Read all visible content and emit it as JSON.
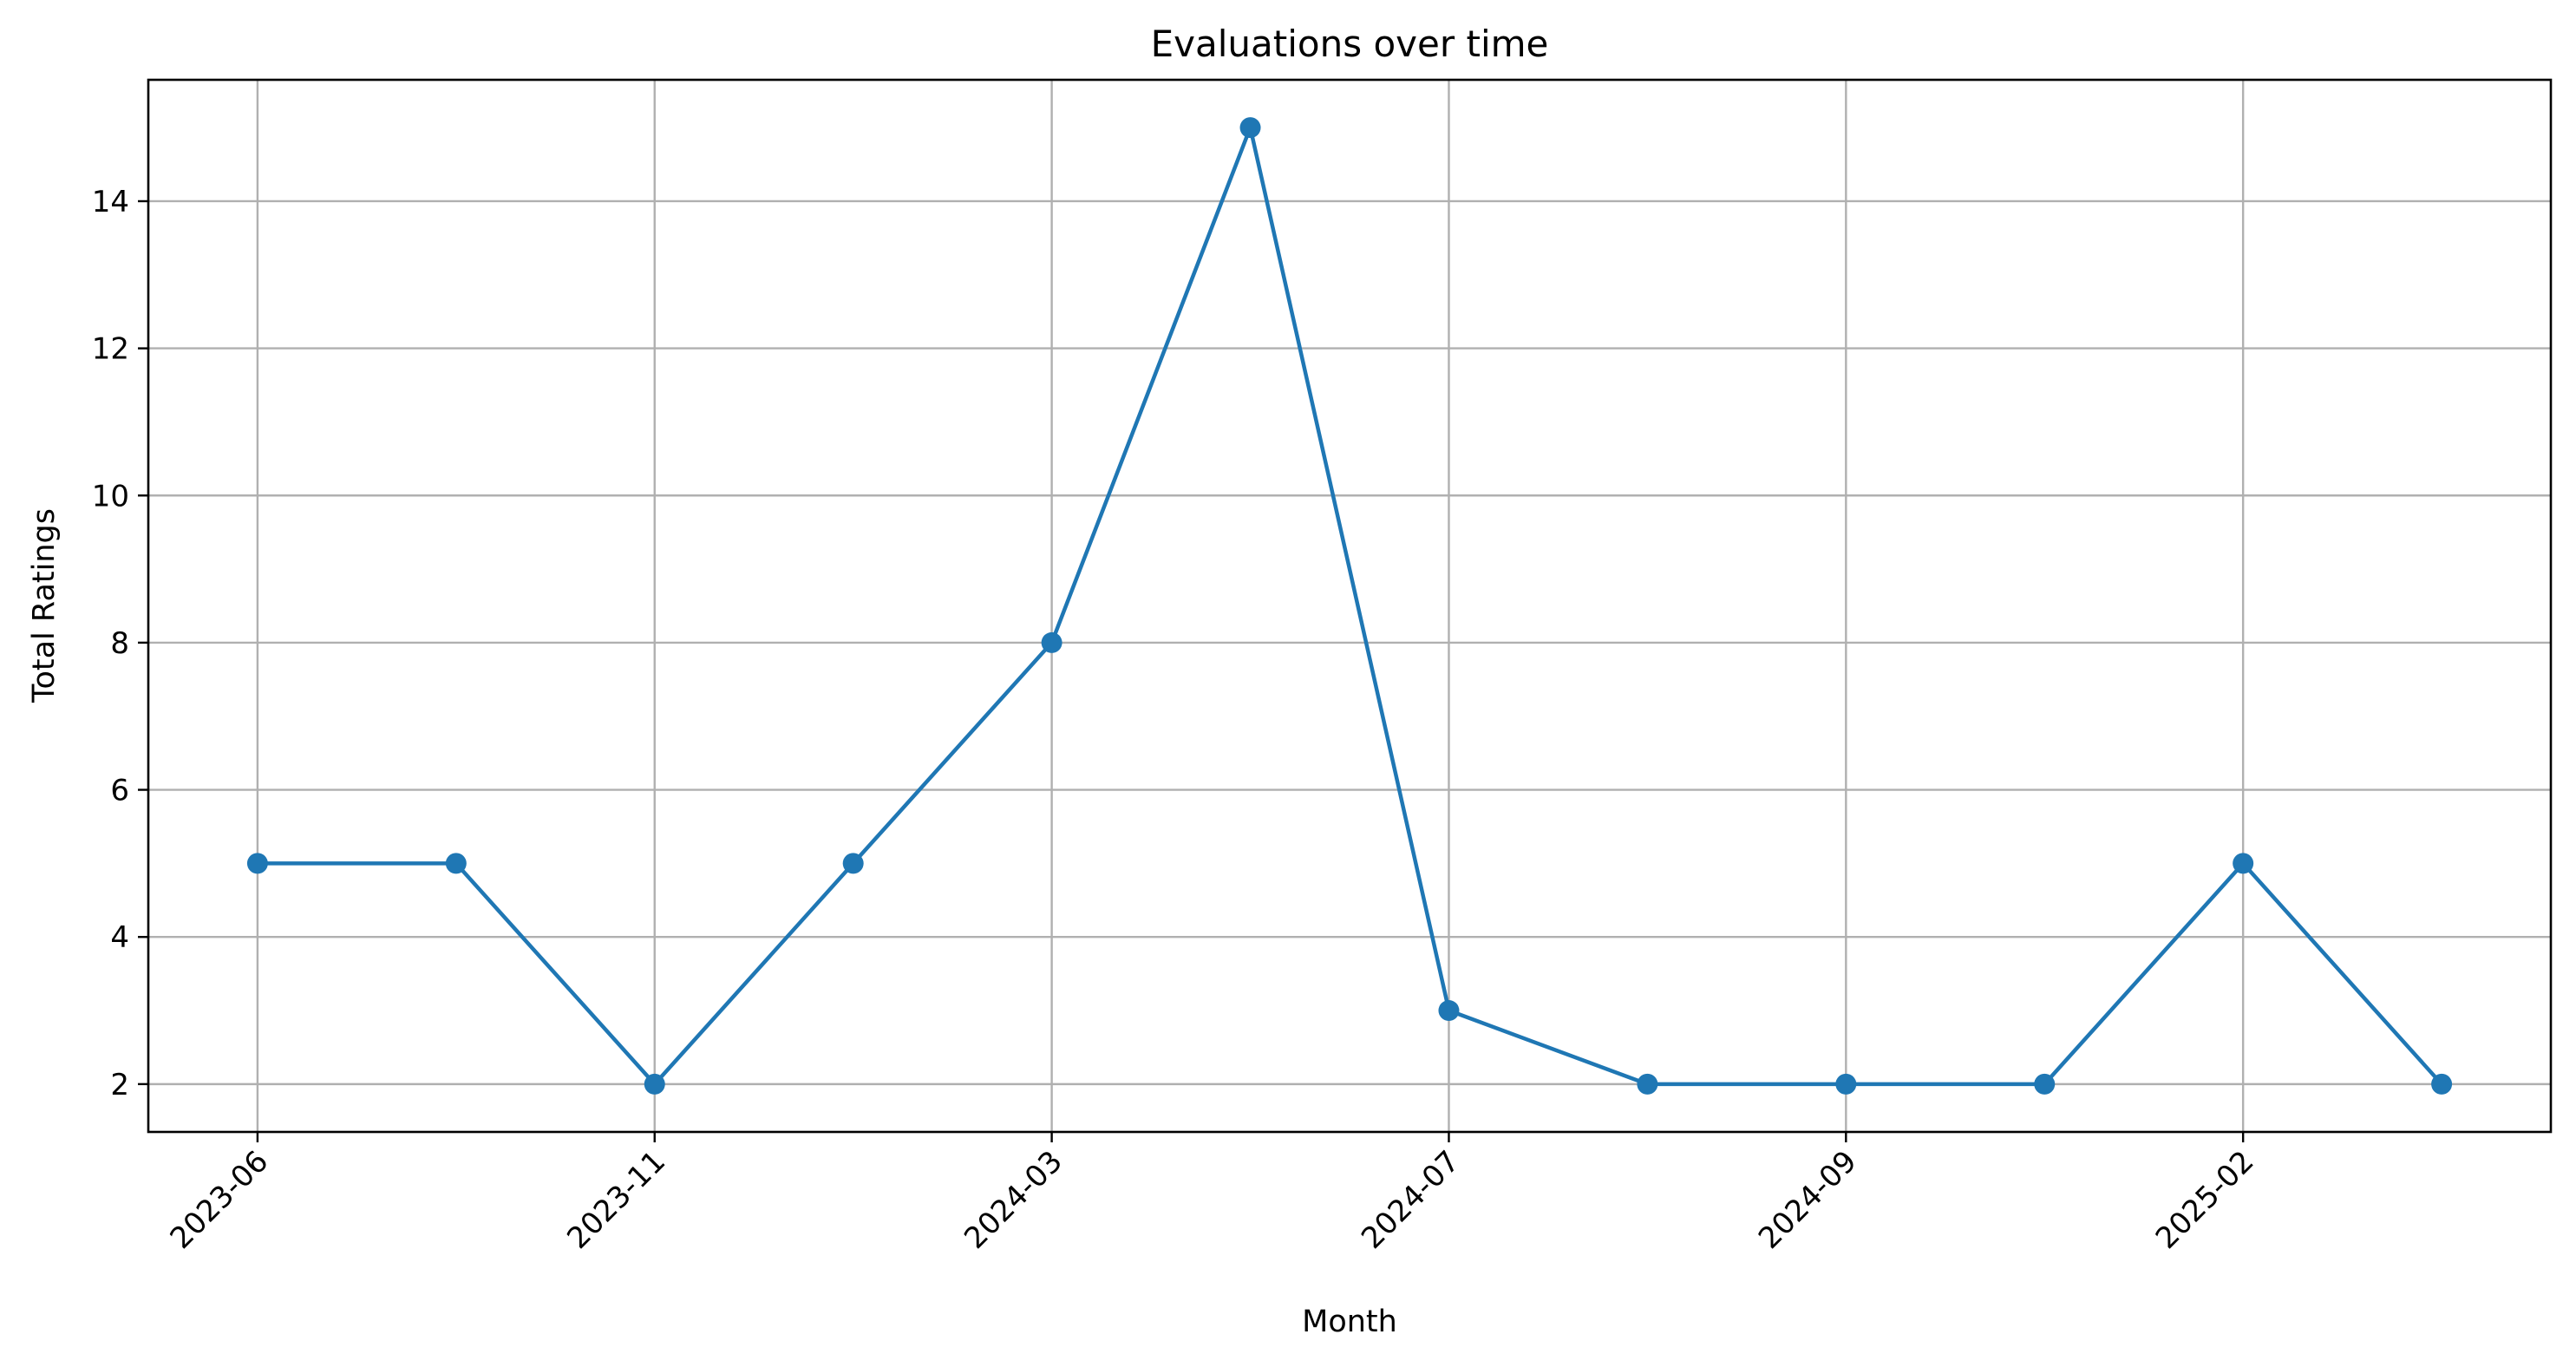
{
  "chart_data": {
    "type": "line",
    "title": "Evaluations over time",
    "xlabel": "Month",
    "ylabel": "Total Ratings",
    "grid": true,
    "x_ticks": [
      {
        "index": 0,
        "label": "2023-06"
      },
      {
        "index": 2,
        "label": "2023-11"
      },
      {
        "index": 4,
        "label": "2024-03"
      },
      {
        "index": 6,
        "label": "2024-07"
      },
      {
        "index": 8,
        "label": "2024-09"
      },
      {
        "index": 10,
        "label": "2025-02"
      }
    ],
    "x": [
      0,
      1,
      2,
      3,
      4,
      5,
      6,
      7,
      8,
      9,
      10,
      11
    ],
    "xlim": [
      -0.55,
      11.55
    ],
    "y_ticks": [
      2,
      4,
      6,
      8,
      10,
      12,
      14
    ],
    "ylim": [
      1.35,
      15.65
    ],
    "series": [
      {
        "name": "Total Ratings",
        "color": "#1f77b4",
        "marker": "circle",
        "values": [
          5,
          5,
          2,
          5,
          8,
          15,
          3,
          2,
          2,
          2,
          5,
          2
        ]
      }
    ]
  }
}
